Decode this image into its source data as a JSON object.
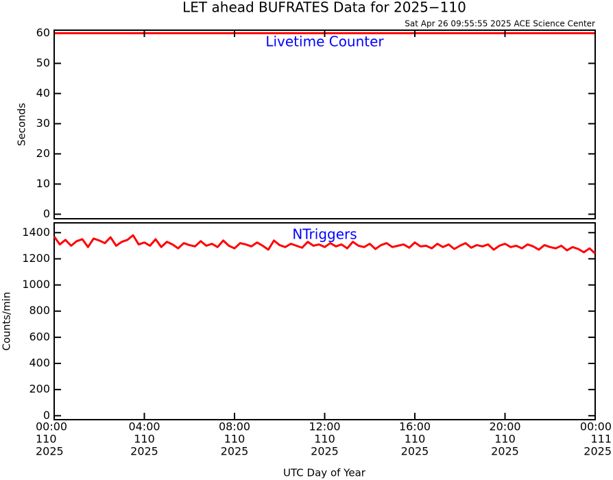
{
  "title": "LET ahead BUFRATES Data for 2025−110",
  "subtitle": "Sat Apr 26 09:55:55 2025 ACE Science Center",
  "xlabel": "UTC Day of Year",
  "chart_data": [
    {
      "type": "line",
      "panel_label": "Livetime Counter",
      "panel_label_color": "#0000ff",
      "ylabel": "Seconds",
      "x": [
        0,
        24
      ],
      "series": [
        {
          "color": "#ff0000",
          "values": [
            60,
            60
          ]
        }
      ],
      "xlim": [
        0,
        24
      ],
      "ylim": [
        -1.5,
        61
      ],
      "yticks": [
        0,
        10,
        20,
        30,
        40,
        50,
        60
      ]
    },
    {
      "type": "line",
      "panel_label": "NTriggers",
      "panel_label_color": "#0000ff",
      "ylabel": "Counts/min",
      "x": [
        0,
        0.25,
        0.5,
        0.75,
        1,
        1.25,
        1.5,
        1.75,
        2,
        2.25,
        2.5,
        2.75,
        3,
        3.25,
        3.5,
        3.75,
        4,
        4.25,
        4.5,
        4.75,
        5,
        5.25,
        5.5,
        5.75,
        6,
        6.25,
        6.5,
        6.75,
        7,
        7.25,
        7.5,
        7.75,
        8,
        8.25,
        8.5,
        8.75,
        9,
        9.25,
        9.5,
        9.75,
        10,
        10.25,
        10.5,
        10.75,
        11,
        11.25,
        11.5,
        11.75,
        12,
        12.25,
        12.5,
        12.75,
        13,
        13.25,
        13.5,
        13.75,
        14,
        14.25,
        14.5,
        14.75,
        15,
        15.25,
        15.5,
        15.75,
        16,
        16.25,
        16.5,
        16.75,
        17,
        17.25,
        17.5,
        17.75,
        18,
        18.25,
        18.5,
        18.75,
        19,
        19.25,
        19.5,
        19.75,
        20,
        20.25,
        20.5,
        20.75,
        21,
        21.25,
        21.5,
        21.75,
        22,
        22.25,
        22.5,
        22.75,
        23,
        23.25,
        23.5,
        23.75,
        24
      ],
      "series": [
        {
          "color": "#ff0000",
          "values": [
            1370,
            1310,
            1345,
            1300,
            1335,
            1350,
            1290,
            1355,
            1340,
            1320,
            1365,
            1300,
            1330,
            1345,
            1380,
            1310,
            1325,
            1300,
            1350,
            1290,
            1330,
            1310,
            1280,
            1320,
            1305,
            1295,
            1335,
            1300,
            1315,
            1290,
            1340,
            1300,
            1280,
            1320,
            1310,
            1295,
            1325,
            1300,
            1270,
            1340,
            1305,
            1290,
            1315,
            1300,
            1285,
            1330,
            1300,
            1310,
            1290,
            1320,
            1295,
            1310,
            1280,
            1330,
            1300,
            1290,
            1315,
            1275,
            1305,
            1320,
            1290,
            1300,
            1310,
            1285,
            1325,
            1295,
            1300,
            1280,
            1315,
            1290,
            1310,
            1275,
            1300,
            1320,
            1285,
            1305,
            1295,
            1310,
            1270,
            1300,
            1315,
            1290,
            1300,
            1280,
            1310,
            1295,
            1270,
            1305,
            1290,
            1280,
            1300,
            1265,
            1290,
            1275,
            1250,
            1280,
            1240
          ]
        }
      ],
      "xlim": [
        0,
        24
      ],
      "ylim": [
        -30,
        1475
      ],
      "yticks": [
        0,
        200,
        400,
        600,
        800,
        1000,
        1200,
        1400
      ],
      "xticks": [
        {
          "value": 0,
          "label": "00:00"
        },
        {
          "value": 4,
          "label": "04:00"
        },
        {
          "value": 8,
          "label": "08:00"
        },
        {
          "value": 12,
          "label": "12:00"
        },
        {
          "value": 16,
          "label": "16:00"
        },
        {
          "value": 20,
          "label": "20:00"
        },
        {
          "value": 24,
          "label": "00:00"
        }
      ],
      "xtick_day_labels": [
        "110",
        "110",
        "110",
        "110",
        "110",
        "110",
        "111"
      ],
      "xtick_year_labels": [
        "2025",
        "2025",
        "2025",
        "2025",
        "2025",
        "2025",
        "2025"
      ]
    }
  ]
}
